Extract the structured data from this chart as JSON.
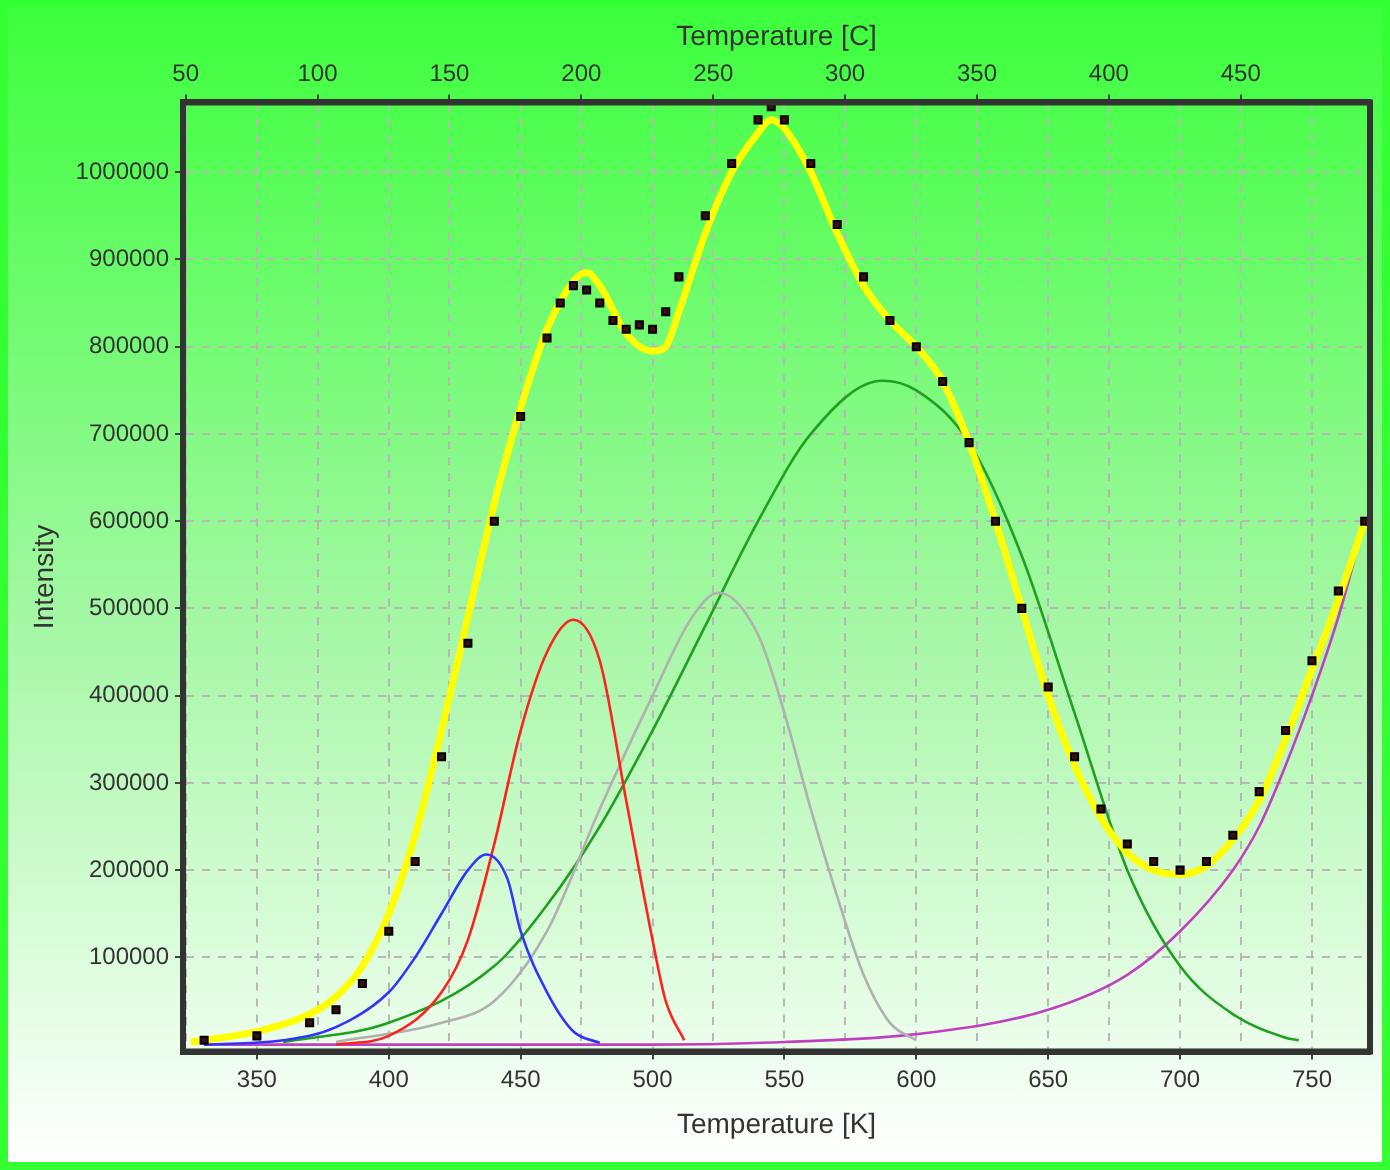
{
  "chart_data": {
    "type": "line",
    "xlabel": "Temperature [K]",
    "x2label": "Temperature [C]",
    "ylabel": "Intensity",
    "xlim": [
      322,
      772
    ],
    "xticks": [
      350,
      400,
      450,
      500,
      550,
      600,
      650,
      700,
      750
    ],
    "x2lim": [
      49,
      499
    ],
    "x2ticks": [
      50,
      100,
      150,
      200,
      250,
      300,
      350,
      400,
      450
    ],
    "ylim": [
      -8000,
      1080000
    ],
    "yticks": [
      100000,
      200000,
      300000,
      400000,
      500000,
      600000,
      700000,
      800000,
      900000,
      1000000
    ],
    "grid": true,
    "series": [
      {
        "type": "scatter",
        "marker": "square",
        "color": "#3a1010",
        "x": [
          330,
          350,
          370,
          380,
          390,
          400,
          410,
          420,
          430,
          440,
          450,
          460,
          465,
          470,
          475,
          480,
          485,
          490,
          495,
          500,
          505,
          510,
          520,
          530,
          540,
          545,
          550,
          560,
          570,
          580,
          590,
          600,
          610,
          620,
          630,
          640,
          650,
          660,
          670,
          680,
          690,
          700,
          710,
          720,
          730,
          740,
          750,
          760,
          770
        ],
        "values": [
          5000,
          10000,
          25000,
          40000,
          70000,
          130000,
          210000,
          330000,
          460000,
          600000,
          720000,
          810000,
          850000,
          870000,
          865000,
          850000,
          830000,
          820000,
          825000,
          820000,
          840000,
          880000,
          950000,
          1010000,
          1060000,
          1075000,
          1060000,
          1010000,
          940000,
          880000,
          830000,
          800000,
          760000,
          690000,
          600000,
          500000,
          410000,
          330000,
          270000,
          230000,
          210000,
          200000,
          210000,
          240000,
          290000,
          360000,
          440000,
          520000,
          600000
        ]
      },
      {
        "color": "#ffff00",
        "x": [
          325,
          350,
          370,
          380,
          390,
          400,
          410,
          420,
          430,
          440,
          450,
          460,
          470,
          475,
          480,
          490,
          500,
          505,
          510,
          520,
          530,
          540,
          545,
          550,
          560,
          570,
          580,
          590,
          600,
          610,
          620,
          630,
          640,
          650,
          660,
          670,
          680,
          690,
          700,
          710,
          720,
          730,
          740,
          750,
          760,
          770
        ],
        "values": [
          3000,
          15000,
          35000,
          55000,
          90000,
          150000,
          240000,
          360000,
          490000,
          620000,
          730000,
          820000,
          875000,
          885000,
          870000,
          815000,
          795000,
          800000,
          840000,
          930000,
          1000000,
          1045000,
          1060000,
          1050000,
          1000000,
          930000,
          870000,
          830000,
          800000,
          760000,
          690000,
          600000,
          500000,
          400000,
          320000,
          260000,
          220000,
          200000,
          195000,
          205000,
          235000,
          280000,
          350000,
          430000,
          510000,
          600000
        ]
      },
      {
        "color": "#3333ff",
        "x": [
          330,
          360,
          380,
          400,
          410,
          420,
          430,
          437,
          445,
          450,
          460,
          470,
          480
        ],
        "values": [
          0,
          5000,
          20000,
          60000,
          100000,
          150000,
          200000,
          218000,
          190000,
          130000,
          60000,
          15000,
          2000
        ]
      },
      {
        "color": "#ff2020",
        "x": [
          380,
          400,
          420,
          430,
          440,
          450,
          460,
          470,
          480,
          490,
          500,
          505,
          512
        ],
        "values": [
          0,
          10000,
          60000,
          120000,
          230000,
          360000,
          450000,
          487000,
          440000,
          280000,
          120000,
          50000,
          5000
        ]
      },
      {
        "color": "#b0b0b0",
        "x": [
          380,
          420,
          440,
          460,
          480,
          500,
          515,
          525,
          540,
          550,
          560,
          570,
          580,
          590,
          600
        ],
        "values": [
          3000,
          25000,
          50000,
          130000,
          270000,
          400000,
          490000,
          518000,
          470000,
          380000,
          270000,
          170000,
          80000,
          25000,
          5000
        ]
      },
      {
        "color": "#20a020",
        "x": [
          360,
          400,
          440,
          460,
          480,
          500,
          520,
          540,
          560,
          587,
          600,
          620,
          640,
          660,
          680,
          700,
          720,
          740,
          745
        ],
        "values": [
          3000,
          25000,
          90000,
          160000,
          250000,
          360000,
          480000,
          600000,
          700000,
          761000,
          750000,
          690000,
          560000,
          380000,
          200000,
          90000,
          35000,
          8000,
          5000
        ]
      },
      {
        "color": "#c040c0",
        "x": [
          330,
          500,
          550,
          600,
          650,
          680,
          700,
          720,
          730,
          740,
          750,
          760,
          770
        ],
        "values": [
          0,
          0,
          3000,
          12000,
          40000,
          80000,
          130000,
          200000,
          250000,
          320000,
          400000,
          490000,
          600000
        ]
      }
    ]
  }
}
